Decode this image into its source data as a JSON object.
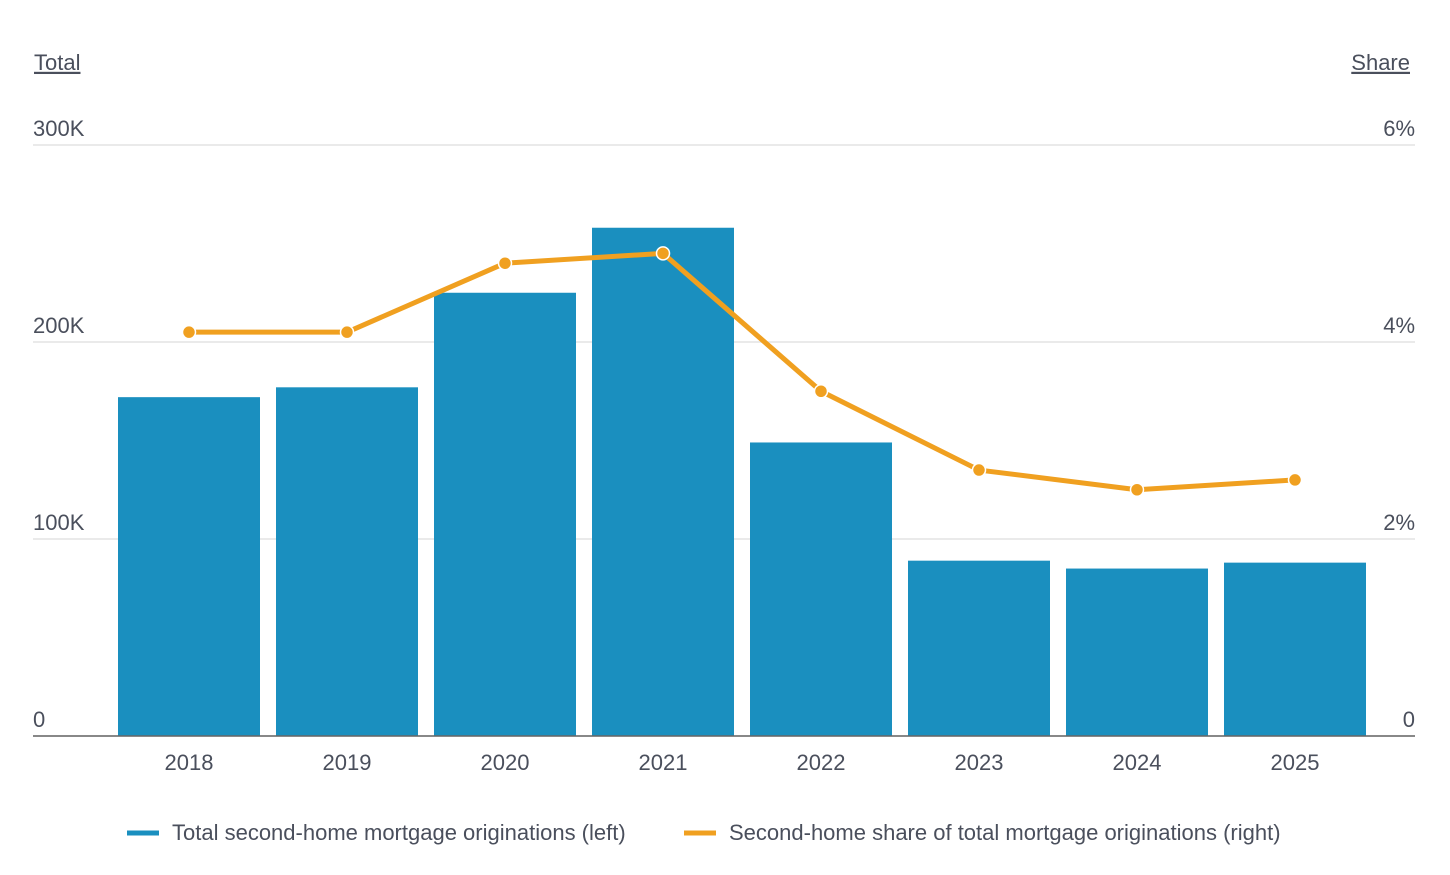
{
  "chart_data": {
    "type": "bar_line",
    "y_axis_title": "Total",
    "y2_axis_title": "Share",
    "categories": [
      "2018",
      "2019",
      "2020",
      "2021",
      "2022",
      "2023",
      "2024",
      "2025"
    ],
    "series": [
      {
        "name": "Total second-home mortgage originations (left)",
        "type": "bar",
        "color": "#1a8fbf",
        "axis": "y",
        "values": [
          172000,
          177000,
          225000,
          258000,
          149000,
          89000,
          85000,
          88000
        ]
      },
      {
        "name": "Second-home share of total mortgage originations (right)",
        "type": "line",
        "color": "#f0a020",
        "axis": "y2",
        "values": [
          4.1,
          4.1,
          4.8,
          4.9,
          3.5,
          2.7,
          2.5,
          2.6
        ]
      }
    ],
    "ylim": [
      0,
      300000
    ],
    "yticks": [
      0,
      {
        "value": 100000,
        "label": "100K"
      },
      {
        "value": 200000,
        "label": "200K"
      },
      {
        "value": 300000,
        "label": "300K"
      }
    ],
    "y2lim": [
      0,
      6
    ],
    "y2ticks": [
      0,
      {
        "value": 2,
        "label": "2%"
      },
      {
        "value": 4,
        "label": "4%"
      },
      {
        "value": 6,
        "label": "6%"
      }
    ],
    "grid": true
  }
}
